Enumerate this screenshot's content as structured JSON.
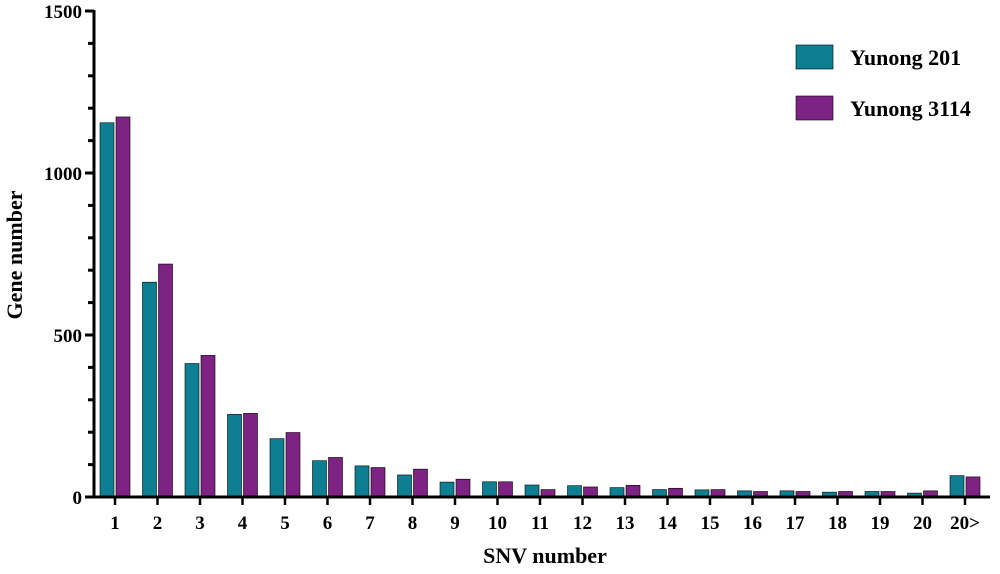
{
  "chart_data": {
    "type": "bar",
    "title": "",
    "xlabel": "SNV number",
    "ylabel": "Gene number",
    "ylim": [
      0,
      1500
    ],
    "yticks": [
      "0",
      "500",
      "1000",
      "1500"
    ],
    "grid": false,
    "legend_position": "top-right",
    "categories": [
      "1",
      "2",
      "3",
      "4",
      "5",
      "6",
      "7",
      "8",
      "9",
      "10",
      "11",
      "12",
      "13",
      "14",
      "15",
      "16",
      "17",
      "18",
      "19",
      "20",
      "20>"
    ],
    "series": [
      {
        "name": "Yunong 201",
        "color": "#0e7f93",
        "values": [
          1155,
          663,
          412,
          255,
          180,
          112,
          96,
          68,
          46,
          47,
          37,
          35,
          29,
          23,
          22,
          19,
          19,
          15,
          17,
          12,
          66
        ]
      },
      {
        "name": "Yunong 3114",
        "color": "#7e2383",
        "values": [
          1173,
          719,
          437,
          258,
          199,
          122,
          91,
          86,
          55,
          47,
          23,
          31,
          36,
          27,
          23,
          17,
          17,
          17,
          17,
          19,
          62
        ]
      }
    ]
  }
}
